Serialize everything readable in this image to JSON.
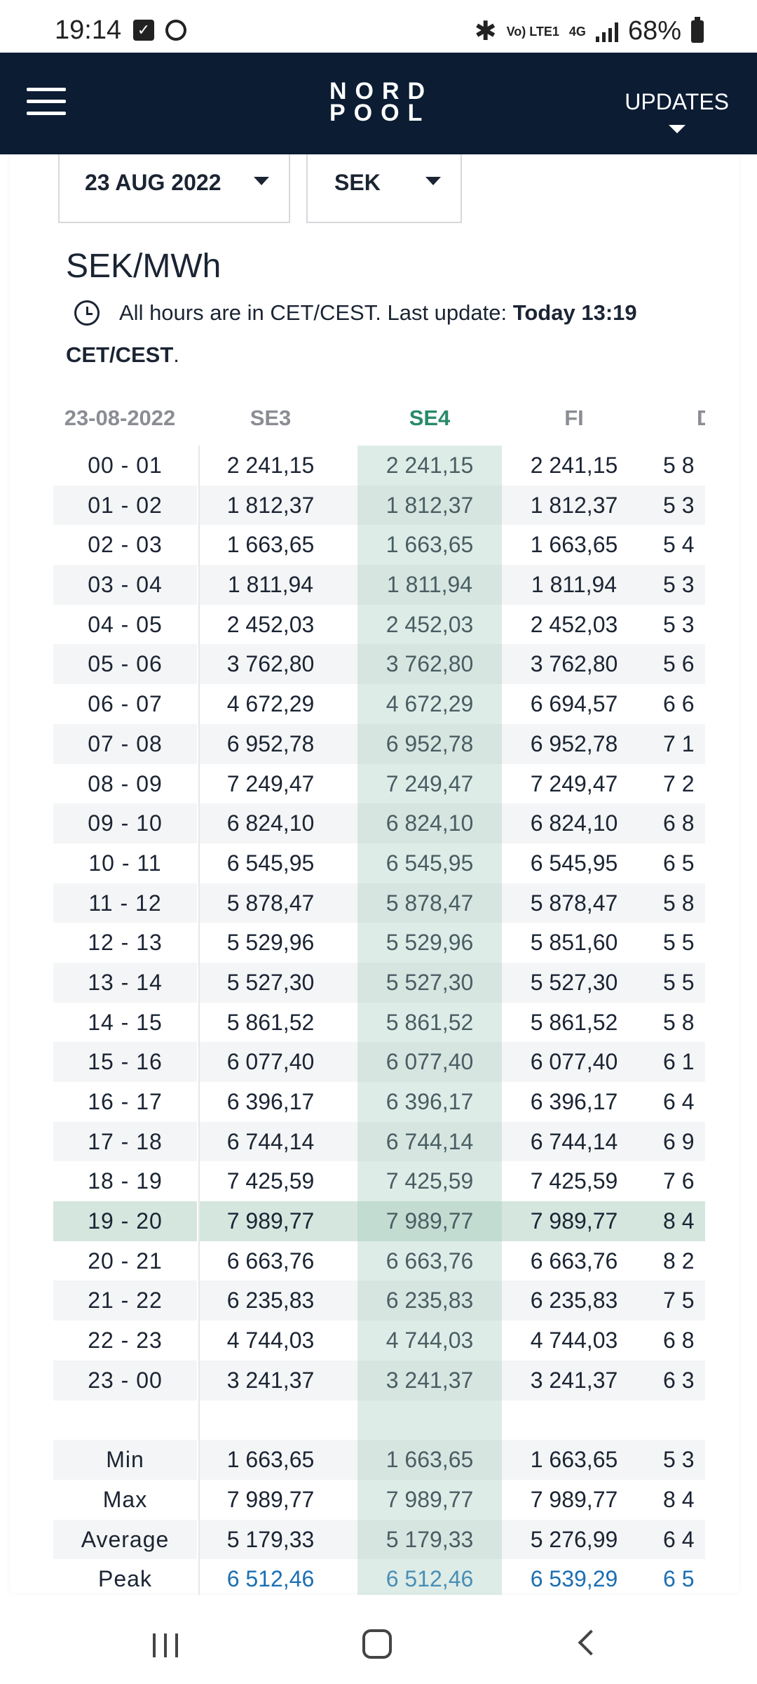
{
  "status_bar": {
    "time": "19:14",
    "network": "Vo) LTE1",
    "net_type": "4G",
    "battery": "68%"
  },
  "header": {
    "menu_icon": "hamburger-icon",
    "logo_line1": "NORD",
    "logo_line2": "POOL",
    "updates_label": "UPDATES"
  },
  "filters": {
    "date": "23 AUG 2022",
    "currency": "SEK"
  },
  "unit_title": "SEK/MWh",
  "info": {
    "prefix": "All hours are in CET/CEST. Last update: ",
    "bold_time": "Today 13:19",
    "bold_zone": "CET/CEST",
    "suffix": "."
  },
  "table": {
    "date_header": "23-08-2022",
    "columns": [
      "SE3",
      "SE4",
      "FI",
      "D"
    ],
    "active_column": "SE4",
    "rows": [
      {
        "hour": "00 - 01",
        "se3": "2 241,15",
        "se4": "2 241,15",
        "fi": "2 241,15",
        "x": "5 8"
      },
      {
        "hour": "01 - 02",
        "se3": "1 812,37",
        "se4": "1 812,37",
        "fi": "1 812,37",
        "x": "5 3"
      },
      {
        "hour": "02 - 03",
        "se3": "1 663,65",
        "se4": "1 663,65",
        "fi": "1 663,65",
        "x": "5 4"
      },
      {
        "hour": "03 - 04",
        "se3": "1 811,94",
        "se4": "1 811,94",
        "fi": "1 811,94",
        "x": "5 3"
      },
      {
        "hour": "04 - 05",
        "se3": "2 452,03",
        "se4": "2 452,03",
        "fi": "2 452,03",
        "x": "5 3"
      },
      {
        "hour": "05 - 06",
        "se3": "3 762,80",
        "se4": "3 762,80",
        "fi": "3 762,80",
        "x": "5 6"
      },
      {
        "hour": "06 - 07",
        "se3": "4 672,29",
        "se4": "4 672,29",
        "fi": "6 694,57",
        "x": "6 6"
      },
      {
        "hour": "07 - 08",
        "se3": "6 952,78",
        "se4": "6 952,78",
        "fi": "6 952,78",
        "x": "7 1"
      },
      {
        "hour": "08 - 09",
        "se3": "7 249,47",
        "se4": "7 249,47",
        "fi": "7 249,47",
        "x": "7 2"
      },
      {
        "hour": "09 - 10",
        "se3": "6 824,10",
        "se4": "6 824,10",
        "fi": "6 824,10",
        "x": "6 8"
      },
      {
        "hour": "10 - 11",
        "se3": "6 545,95",
        "se4": "6 545,95",
        "fi": "6 545,95",
        "x": "6 5"
      },
      {
        "hour": "11 - 12",
        "se3": "5 878,47",
        "se4": "5 878,47",
        "fi": "5 878,47",
        "x": "5 8"
      },
      {
        "hour": "12 - 13",
        "se3": "5 529,96",
        "se4": "5 529,96",
        "fi": "5 851,60",
        "x": "5 5"
      },
      {
        "hour": "13 - 14",
        "se3": "5 527,30",
        "se4": "5 527,30",
        "fi": "5 527,30",
        "x": "5 5"
      },
      {
        "hour": "14 - 15",
        "se3": "5 861,52",
        "se4": "5 861,52",
        "fi": "5 861,52",
        "x": "5 8"
      },
      {
        "hour": "15 - 16",
        "se3": "6 077,40",
        "se4": "6 077,40",
        "fi": "6 077,40",
        "x": "6 1"
      },
      {
        "hour": "16 - 17",
        "se3": "6 396,17",
        "se4": "6 396,17",
        "fi": "6 396,17",
        "x": "6 4"
      },
      {
        "hour": "17 - 18",
        "se3": "6 744,14",
        "se4": "6 744,14",
        "fi": "6 744,14",
        "x": "6 9"
      },
      {
        "hour": "18 - 19",
        "se3": "7 425,59",
        "se4": "7 425,59",
        "fi": "7 425,59",
        "x": "7 6"
      },
      {
        "hour": "19 - 20",
        "se3": "7 989,77",
        "se4": "7 989,77",
        "fi": "7 989,77",
        "x": "8 4"
      },
      {
        "hour": "20 - 21",
        "se3": "6 663,76",
        "se4": "6 663,76",
        "fi": "6 663,76",
        "x": "8 2"
      },
      {
        "hour": "21 - 22",
        "se3": "6 235,83",
        "se4": "6 235,83",
        "fi": "6 235,83",
        "x": "7 5"
      },
      {
        "hour": "22 - 23",
        "se3": "4 744,03",
        "se4": "4 744,03",
        "fi": "4 744,03",
        "x": "6 8"
      },
      {
        "hour": "23 - 00",
        "se3": "3 241,37",
        "se4": "3 241,37",
        "fi": "3 241,37",
        "x": "6 3"
      }
    ],
    "highlighted_row": "19 - 20",
    "summary": [
      {
        "label": "Min",
        "se3": "1 663,65",
        "se4": "1 663,65",
        "fi": "1 663,65",
        "x": "5 3",
        "link": false
      },
      {
        "label": "Max",
        "se3": "7 989,77",
        "se4": "7 989,77",
        "fi": "7 989,77",
        "x": "8 4",
        "link": false
      },
      {
        "label": "Average",
        "se3": "5 179,33",
        "se4": "5 179,33",
        "fi": "5 276,99",
        "x": "6 4",
        "link": false
      },
      {
        "label": "Peak",
        "se3": "6 512,46",
        "se4": "6 512,46",
        "fi": "6 539,29",
        "x": "6 5",
        "link": true
      }
    ]
  },
  "colors": {
    "header_bg": "#0b1c33",
    "active_col_text": "#2a8a6a",
    "highlight_row": "#d5e6df",
    "link": "#1b6fb3"
  },
  "nav": {
    "recent_icon": "recent-apps-icon",
    "home_icon": "home-icon",
    "back_icon": "back-icon"
  }
}
